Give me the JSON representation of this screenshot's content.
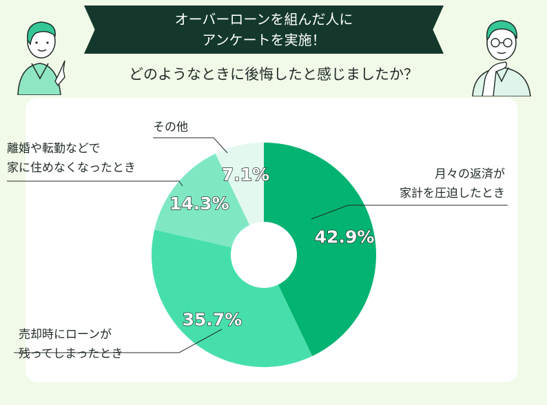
{
  "banner": {
    "line1": "オーバーローンを組んだ人に",
    "line2": "アンケートを実施！"
  },
  "question": "どのようなときに後悔したと感じましたか？",
  "chart_data": {
    "type": "pie",
    "donut": true,
    "slices": [
      {
        "label_lines": [
          "月々の返済が",
          "家計を圧迫したとき"
        ],
        "value": 42.9,
        "display": "42.9%",
        "color": "#03b371"
      },
      {
        "label_lines": [
          "売却時にローンが",
          "残ってしまったとき"
        ],
        "value": 35.7,
        "display": "35.7%",
        "color": "#46dfac"
      },
      {
        "label_lines": [
          "離婚や転勤などで",
          "家に住めなくなったとき"
        ],
        "value": 14.3,
        "display": "14.3%",
        "color": "#7fe8c3"
      },
      {
        "label_lines": [
          "その他"
        ],
        "value": 7.1,
        "display": "7.1%",
        "color": "#e3f8ef"
      }
    ]
  },
  "colors": {
    "banner_bg": "#14392c",
    "page_bg": "#f1f9e8",
    "card_bg": "#ffffff"
  },
  "icons": {
    "left": "person-pointing-icon",
    "right": "person-thinking-icon"
  }
}
